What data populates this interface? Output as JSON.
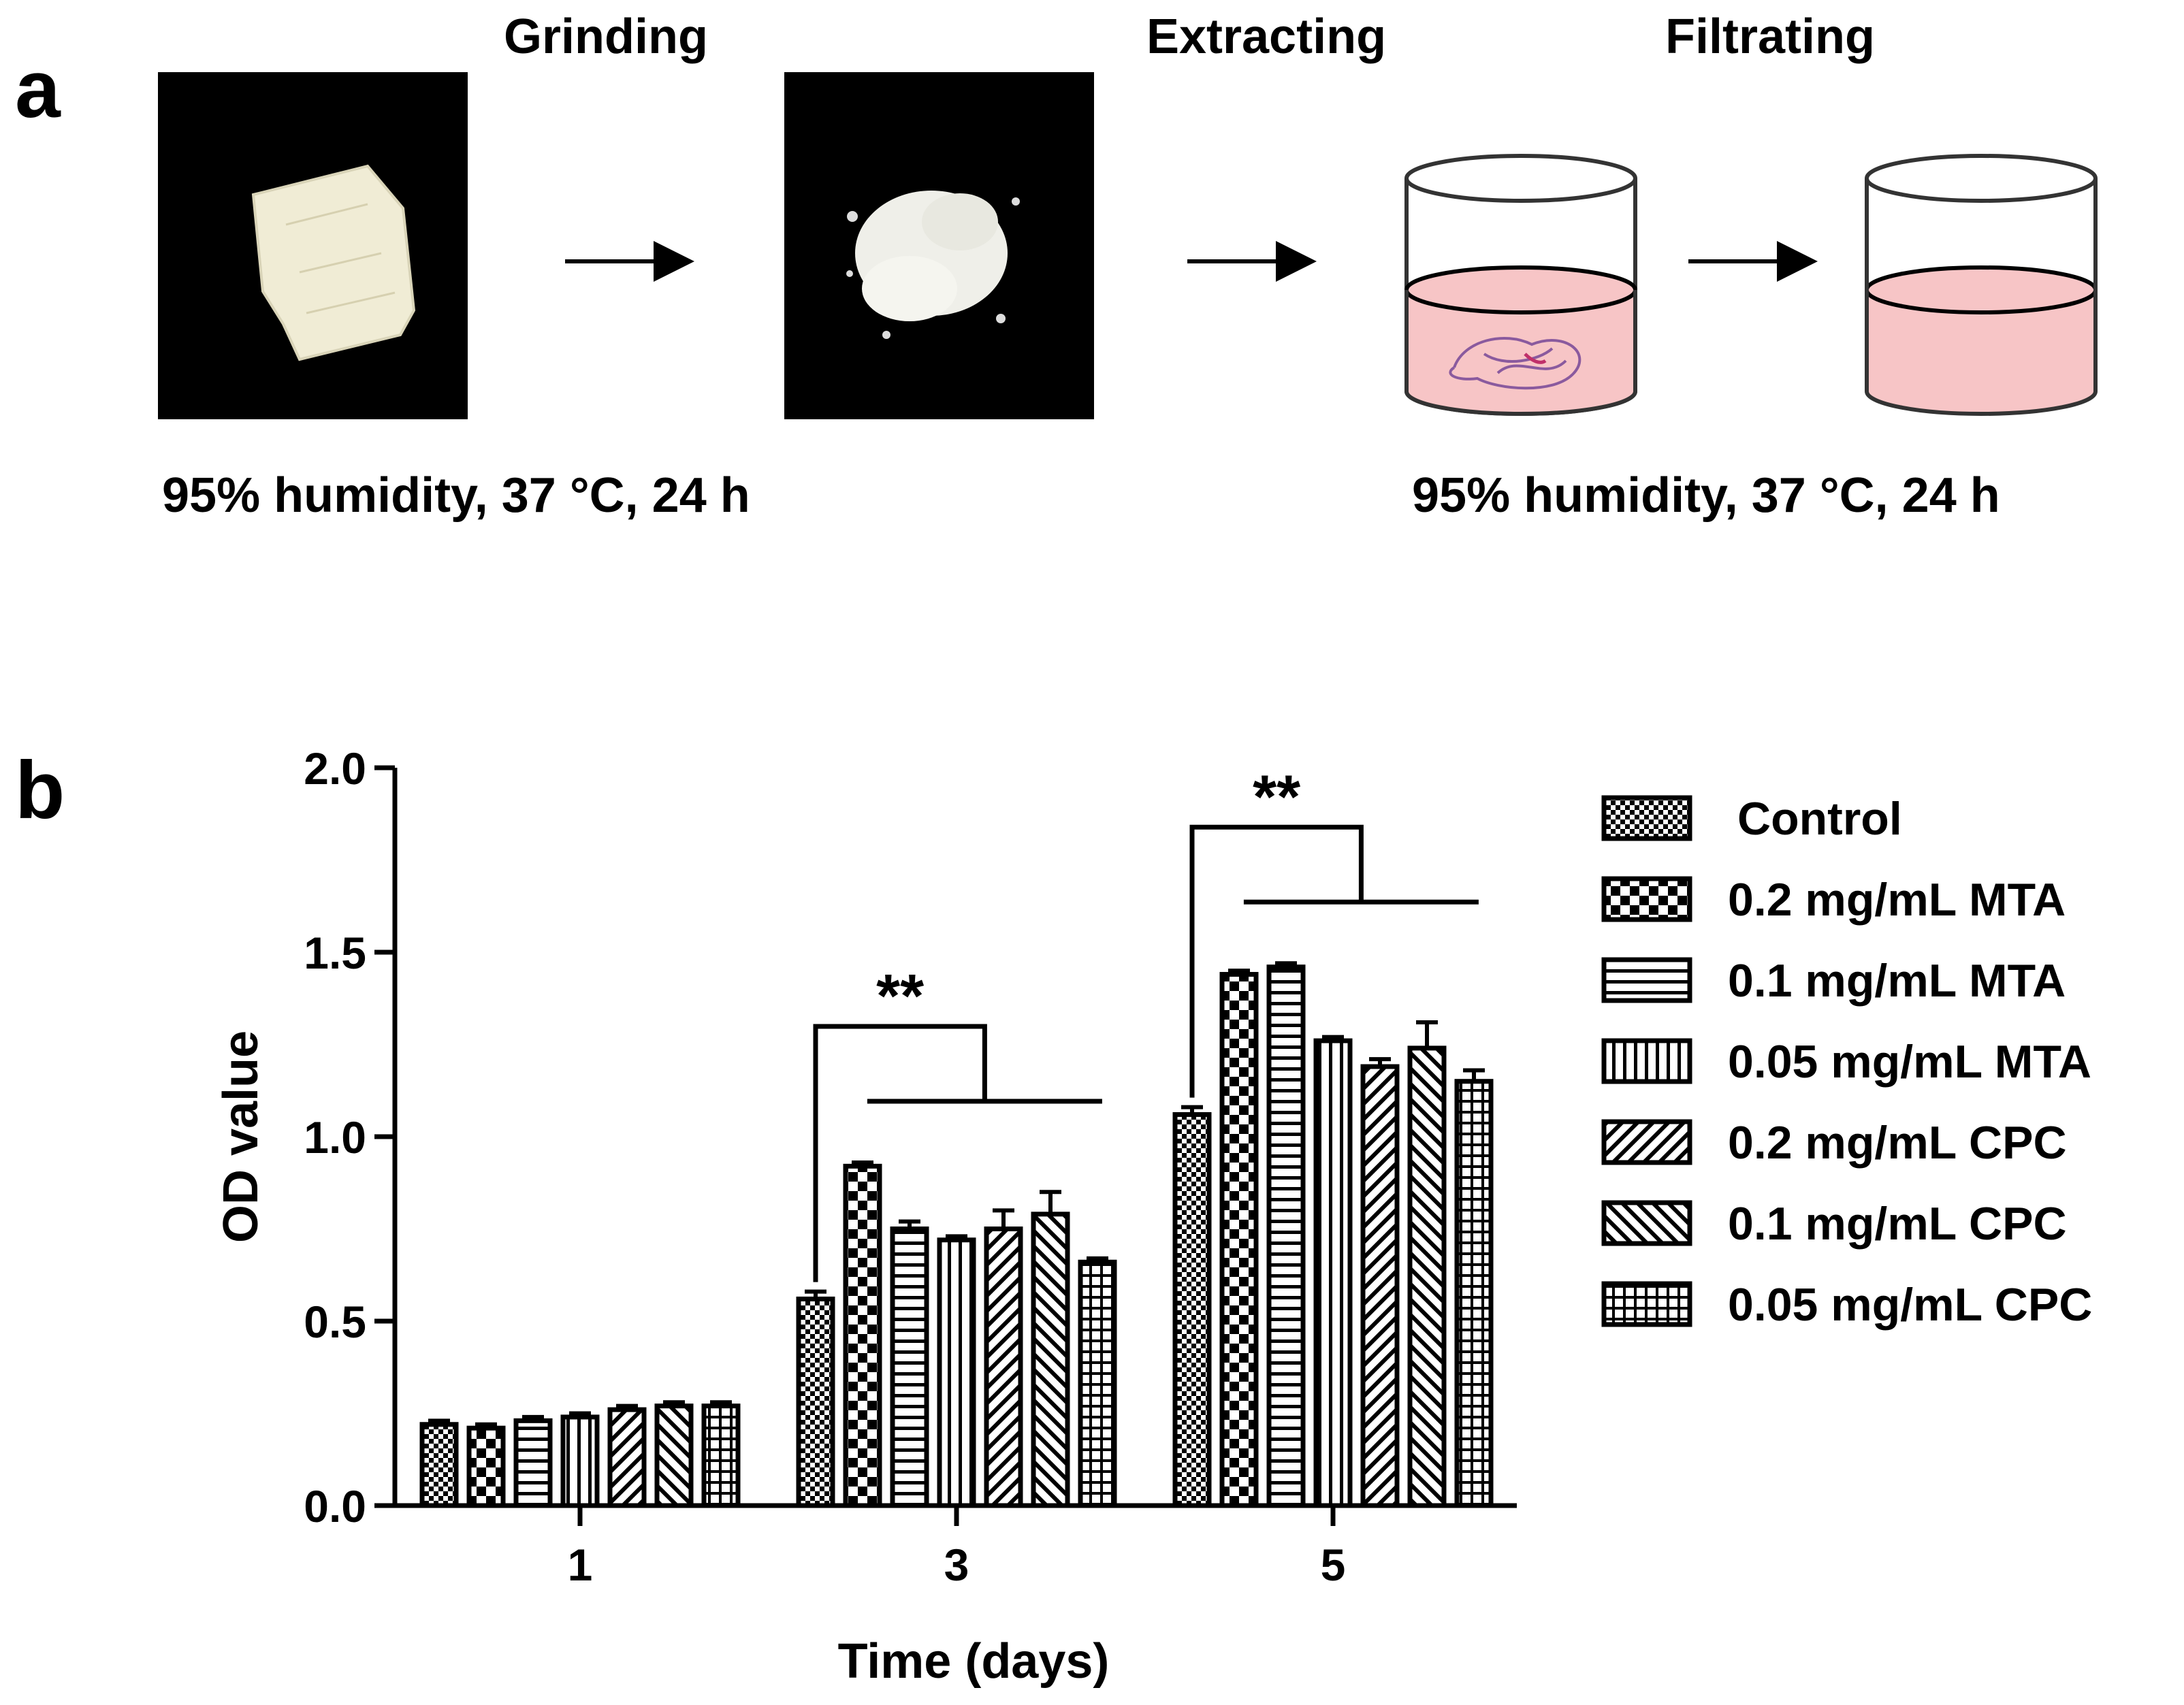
{
  "panel_a": {
    "panel_label": "a",
    "steps": [
      "Grinding",
      "Extracting",
      "Filtrating"
    ],
    "condition_left": "95% humidity, 37 °C, 24 h",
    "condition_right": "95% humidity, 37 °C, 24 h"
  },
  "panel_b": {
    "panel_label": "b"
  },
  "colors": {
    "ink": "#000000",
    "liquid": "#f7c5c6",
    "sample_block": "#f0ecd5",
    "photo_bg": "#000000"
  },
  "chart_data": {
    "type": "bar",
    "title": "",
    "xlabel": "Time (days)",
    "ylabel": "OD value",
    "categories": [
      "1",
      "3",
      "5"
    ],
    "ylim": [
      0,
      2.0
    ],
    "yticks": [
      "0.0",
      "0.5",
      "1.0",
      "1.5",
      "2.0"
    ],
    "legend_position": "right",
    "series": [
      {
        "name": "Control",
        "pattern": "checker-fine",
        "values": [
          0.22,
          0.56,
          1.06
        ],
        "errors": [
          0.01,
          0.02,
          0.02
        ]
      },
      {
        "name": "0.2 mg/mL MTA",
        "pattern": "checker-large",
        "values": [
          0.21,
          0.92,
          1.44
        ],
        "errors": [
          0.01,
          0.01,
          0.01
        ]
      },
      {
        "name": "0.1 mg/mL MTA",
        "pattern": "horizontal",
        "values": [
          0.23,
          0.75,
          1.46
        ],
        "errors": [
          0.01,
          0.02,
          0.01
        ]
      },
      {
        "name": "0.05 mg/mL MTA",
        "pattern": "vertical",
        "values": [
          0.24,
          0.72,
          1.26
        ],
        "errors": [
          0.01,
          0.01,
          0.01
        ]
      },
      {
        "name": "0.2 mg/mL CPC",
        "pattern": "diagonal-up",
        "values": [
          0.26,
          0.75,
          1.19
        ],
        "errors": [
          0.01,
          0.05,
          0.02
        ]
      },
      {
        "name": "0.1 mg/mL CPC",
        "pattern": "diagonal-down",
        "values": [
          0.27,
          0.79,
          1.24
        ],
        "errors": [
          0.01,
          0.06,
          0.07
        ]
      },
      {
        "name": "0.05 mg/mL CPC",
        "pattern": "grid",
        "values": [
          0.27,
          0.66,
          1.15
        ],
        "errors": [
          0.01,
          0.01,
          0.03
        ]
      }
    ],
    "annotations": [
      {
        "category": "3",
        "text": "**"
      },
      {
        "category": "5",
        "text": "**"
      }
    ]
  }
}
